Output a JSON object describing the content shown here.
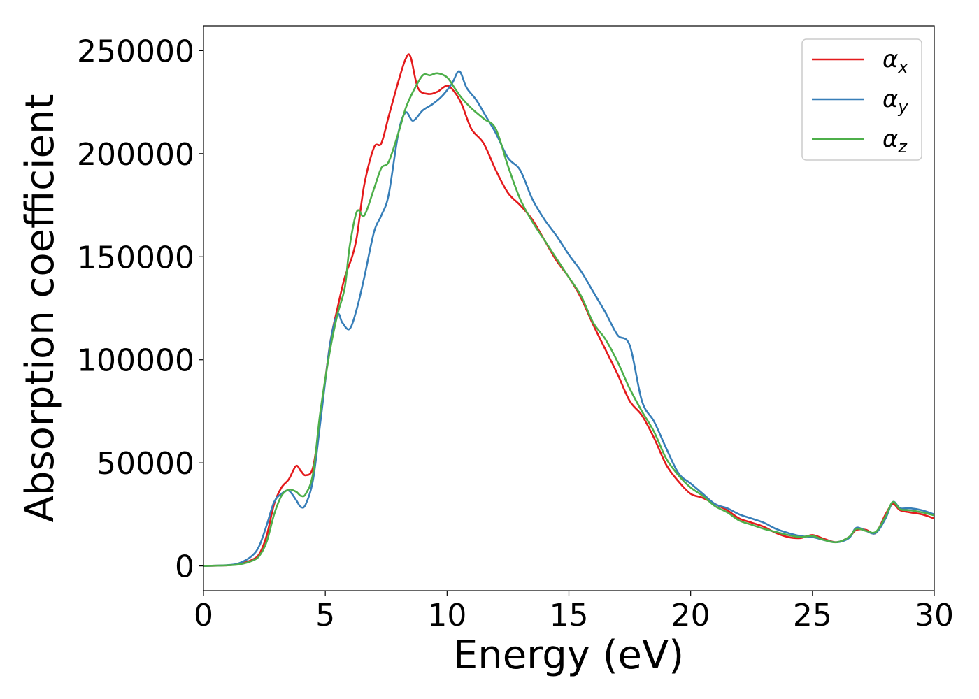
{
  "chart_data": {
    "type": "line",
    "title": "",
    "xlabel": "Energy (eV)",
    "ylabel": "Absorption coefficient",
    "xlim": [
      0,
      30
    ],
    "ylim": [
      -12000,
      262000
    ],
    "xticks": [
      0,
      5,
      10,
      15,
      20,
      25,
      30
    ],
    "xtick_labels": [
      "0",
      "5",
      "10",
      "15",
      "20",
      "25",
      "30"
    ],
    "yticks": [
      0,
      50000,
      100000,
      150000,
      200000,
      250000
    ],
    "ytick_labels": [
      "0",
      "50000",
      "100000",
      "150000",
      "200000",
      "250000"
    ],
    "grid": false,
    "legend_position": "top-right",
    "series": [
      {
        "name": "α",
        "subscript": "x",
        "color": "#e41a1c",
        "x": [
          0,
          1,
          1.5,
          2,
          2.3,
          2.6,
          2.9,
          3.2,
          3.5,
          3.8,
          4.0,
          4.2,
          4.5,
          4.8,
          5.2,
          5.5,
          5.8,
          6.1,
          6.3,
          6.6,
          7.0,
          7.3,
          7.6,
          8.0,
          8.3,
          8.5,
          8.8,
          9.2,
          9.6,
          10.0,
          10.3,
          10.6,
          11.0,
          11.5,
          12.0,
          12.5,
          13.0,
          13.5,
          14.0,
          14.5,
          15.0,
          15.5,
          16.0,
          16.5,
          17.0,
          17.5,
          18.0,
          18.5,
          19.0,
          19.5,
          20.0,
          20.5,
          21.0,
          21.5,
          22.0,
          22.5,
          23.0,
          23.5,
          24.0,
          24.5,
          25.0,
          25.5,
          26.0,
          26.5,
          26.8,
          27.2,
          27.6,
          28.0,
          28.3,
          28.6,
          29.0,
          29.5,
          30.0
        ],
        "y": [
          0,
          300,
          1000,
          3000,
          6000,
          15000,
          30000,
          38000,
          42000,
          48500,
          46000,
          44000,
          48000,
          72000,
          108000,
          125000,
          140000,
          150000,
          160000,
          185000,
          203000,
          205000,
          218000,
          235000,
          246000,
          247000,
          232000,
          229000,
          230000,
          233000,
          230000,
          224000,
          212000,
          205000,
          192000,
          181000,
          175000,
          168000,
          158000,
          148000,
          140000,
          130000,
          117000,
          105000,
          93000,
          80000,
          73000,
          62000,
          49000,
          41000,
          35000,
          33000,
          30000,
          27000,
          23000,
          21000,
          19000,
          16000,
          14000,
          13500,
          15000,
          13000,
          11500,
          14000,
          17500,
          17500,
          16000,
          25000,
          30000,
          27000,
          26000,
          25000,
          23000
        ]
      },
      {
        "name": "α",
        "subscript": "y",
        "color": "#377eb8",
        "x": [
          0,
          1,
          1.5,
          2,
          2.3,
          2.6,
          2.9,
          3.2,
          3.5,
          3.8,
          4.0,
          4.2,
          4.5,
          4.8,
          5.2,
          5.5,
          5.7,
          6.0,
          6.3,
          6.6,
          7.0,
          7.3,
          7.6,
          8.0,
          8.3,
          8.6,
          9.0,
          9.4,
          9.8,
          10.2,
          10.5,
          10.8,
          11.2,
          11.6,
          12.0,
          12.5,
          13.0,
          13.5,
          14.0,
          14.5,
          15.0,
          15.5,
          16.0,
          16.5,
          17.0,
          17.5,
          18.0,
          18.5,
          19.0,
          19.5,
          20.0,
          20.5,
          21.0,
          21.5,
          22.0,
          22.5,
          23.0,
          23.5,
          24.0,
          24.5,
          25.0,
          25.5,
          26.0,
          26.5,
          26.8,
          27.2,
          27.6,
          28.0,
          28.3,
          28.6,
          29.0,
          29.5,
          30.0
        ],
        "y": [
          0,
          400,
          1500,
          5000,
          10000,
          20000,
          31000,
          35000,
          36500,
          32000,
          28500,
          30000,
          42000,
          70000,
          108000,
          122000,
          118000,
          115000,
          125000,
          140000,
          162000,
          170000,
          180000,
          210000,
          220000,
          216000,
          221000,
          224000,
          228000,
          234000,
          240000,
          232000,
          226000,
          218000,
          210000,
          198000,
          192000,
          178000,
          168000,
          160000,
          151000,
          143000,
          133000,
          123000,
          112000,
          107000,
          80000,
          70000,
          57000,
          45000,
          40000,
          35000,
          30000,
          28000,
          25000,
          23000,
          21000,
          18000,
          16000,
          14500,
          14000,
          12500,
          11500,
          13500,
          18500,
          17000,
          16000,
          23000,
          31000,
          28000,
          28000,
          27000,
          25000
        ]
      },
      {
        "name": "α",
        "subscript": "z",
        "color": "#4daf4a",
        "x": [
          0,
          1,
          1.5,
          2,
          2.3,
          2.6,
          2.9,
          3.2,
          3.5,
          3.8,
          4.0,
          4.2,
          4.5,
          4.8,
          5.2,
          5.5,
          5.8,
          6.0,
          6.3,
          6.6,
          7.0,
          7.3,
          7.6,
          8.0,
          8.3,
          8.6,
          9.0,
          9.3,
          9.6,
          10.0,
          10.3,
          10.6,
          11.0,
          11.5,
          12.0,
          12.5,
          13.0,
          13.5,
          14.0,
          14.5,
          15.0,
          15.5,
          16.0,
          16.5,
          17.0,
          17.5,
          18.0,
          18.5,
          19.0,
          19.5,
          20.0,
          20.5,
          21.0,
          21.5,
          22.0,
          22.5,
          23.0,
          23.5,
          24.0,
          24.5,
          25.0,
          25.5,
          26.0,
          26.5,
          26.8,
          27.2,
          27.6,
          28.0,
          28.3,
          28.6,
          29.0,
          29.5,
          30.0
        ],
        "y": [
          0,
          300,
          800,
          2500,
          5000,
          12000,
          25000,
          34000,
          37000,
          36000,
          34000,
          35000,
          45000,
          75000,
          105000,
          122000,
          135000,
          155000,
          172000,
          170000,
          183000,
          193000,
          196000,
          210000,
          222000,
          230000,
          238000,
          238000,
          239000,
          237000,
          232000,
          227000,
          222000,
          217000,
          212000,
          194000,
          178000,
          167000,
          158000,
          149000,
          140000,
          131000,
          118000,
          110000,
          99000,
          86000,
          75000,
          65000,
          52000,
          44000,
          38000,
          34000,
          29000,
          26000,
          22000,
          20000,
          18000,
          16500,
          15000,
          14000,
          14500,
          12500,
          11500,
          14000,
          18000,
          17000,
          16500,
          24000,
          31000,
          27500,
          27000,
          26000,
          24500
        ]
      }
    ]
  }
}
